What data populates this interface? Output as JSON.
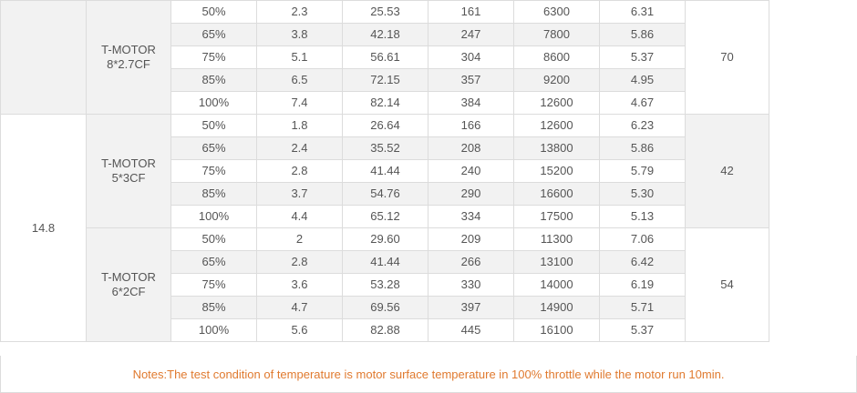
{
  "voltage": "14.8",
  "groups": [
    {
      "prop_line1": "T-MOTOR",
      "prop_line2": "8*2.7CF",
      "temperature": "70",
      "rows": [
        [
          "50%",
          "2.3",
          "25.53",
          "161",
          "6300",
          "6.31"
        ],
        [
          "65%",
          "3.8",
          "42.18",
          "247",
          "7800",
          "5.86"
        ],
        [
          "75%",
          "5.1",
          "56.61",
          "304",
          "8600",
          "5.37"
        ],
        [
          "85%",
          "6.5",
          "72.15",
          "357",
          "9200",
          "4.95"
        ],
        [
          "100%",
          "7.4",
          "82.14",
          "384",
          "12600",
          "4.67"
        ]
      ]
    },
    {
      "prop_line1": "T-MOTOR",
      "prop_line2": "5*3CF",
      "temperature": "42",
      "rows": [
        [
          "50%",
          "1.8",
          "26.64",
          "166",
          "12600",
          "6.23"
        ],
        [
          "65%",
          "2.4",
          "35.52",
          "208",
          "13800",
          "5.86"
        ],
        [
          "75%",
          "2.8",
          "41.44",
          "240",
          "15200",
          "5.79"
        ],
        [
          "85%",
          "3.7",
          "54.76",
          "290",
          "16600",
          "5.30"
        ],
        [
          "100%",
          "4.4",
          "65.12",
          "334",
          "17500",
          "5.13"
        ]
      ]
    },
    {
      "prop_line1": "T-MOTOR",
      "prop_line2": "6*2CF",
      "temperature": "54",
      "rows": [
        [
          "50%",
          "2",
          "29.60",
          "209",
          "11300",
          "7.06"
        ],
        [
          "65%",
          "2.8",
          "41.44",
          "266",
          "13100",
          "6.42"
        ],
        [
          "75%",
          "3.6",
          "53.28",
          "330",
          "14000",
          "6.19"
        ],
        [
          "85%",
          "4.7",
          "69.56",
          "397",
          "14900",
          "5.71"
        ],
        [
          "100%",
          "5.6",
          "82.88",
          "445",
          "16100",
          "5.37"
        ]
      ]
    }
  ],
  "note": "Notes:The test condition of temperature is motor surface temperature in 100% throttle while the motor run 10min."
}
